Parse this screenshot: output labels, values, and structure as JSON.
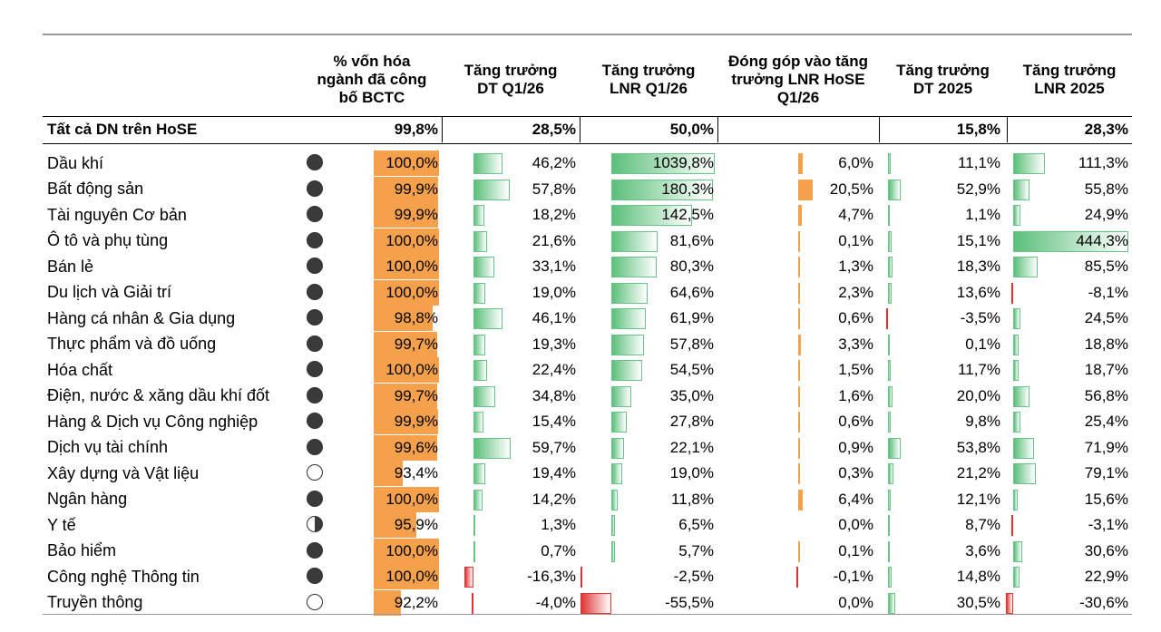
{
  "headers": {
    "cap": "% vốn hóa\nngành đã công\nbố BCTC",
    "rev_q1": "Tăng trưởng\nDT Q1/26",
    "np_q1": "Tăng trưởng\nLNR Q1/26",
    "contrib": "Đóng góp vào tăng\ntrưởng LNR HoSE\nQ1/26",
    "rev_2025": "Tăng trưởng\nDT 2025",
    "np_2025": "Tăng trưởng\nLNR 2025"
  },
  "summary": {
    "name": "Tất cả DN trên HoSE",
    "cap": "99,8%",
    "rev_q1": "28,5%",
    "np_q1": "50,0%",
    "contrib": "",
    "rev_2025": "15,8%",
    "np_2025": "28,3%"
  },
  "rows": [
    {
      "name": "Dầu khí",
      "status": "full",
      "cap": "100,0%",
      "rev_q1": "46,2%",
      "np_q1": "1039,8%",
      "contrib": "6,0%",
      "rev_2025": "11,1%",
      "np_2025": "111,3%",
      "rev_q1_v": 46.2,
      "np_q1_v": 1039.8,
      "contrib_v": 6.0,
      "rev_2025_v": 11.1,
      "np_2025_v": 111.3
    },
    {
      "name": "Bất động sản",
      "status": "full",
      "cap": "99,9%",
      "rev_q1": "57,8%",
      "np_q1": "180,3%",
      "contrib": "20,5%",
      "rev_2025": "52,9%",
      "np_2025": "55,8%",
      "rev_q1_v": 57.8,
      "np_q1_v": 180.3,
      "contrib_v": 20.5,
      "rev_2025_v": 52.9,
      "np_2025_v": 55.8
    },
    {
      "name": "Tài nguyên Cơ bản",
      "status": "full",
      "cap": "99,9%",
      "rev_q1": "18,2%",
      "np_q1": "142,5%",
      "contrib": "4,7%",
      "rev_2025": "1,1%",
      "np_2025": "24,9%",
      "rev_q1_v": 18.2,
      "np_q1_v": 142.5,
      "contrib_v": 4.7,
      "rev_2025_v": 1.1,
      "np_2025_v": 24.9
    },
    {
      "name": "Ô tô và phụ tùng",
      "status": "full",
      "cap": "100,0%",
      "rev_q1": "21,6%",
      "np_q1": "81,6%",
      "contrib": "0,1%",
      "rev_2025": "15,1%",
      "np_2025": "444,3%",
      "rev_q1_v": 21.6,
      "np_q1_v": 81.6,
      "contrib_v": 0.1,
      "rev_2025_v": 15.1,
      "np_2025_v": 444.3
    },
    {
      "name": "Bán lẻ",
      "status": "full",
      "cap": "100,0%",
      "rev_q1": "33,1%",
      "np_q1": "80,3%",
      "contrib": "1,3%",
      "rev_2025": "18,3%",
      "np_2025": "85,5%",
      "rev_q1_v": 33.1,
      "np_q1_v": 80.3,
      "contrib_v": 1.3,
      "rev_2025_v": 18.3,
      "np_2025_v": 85.5
    },
    {
      "name": "Du lịch và Giải trí",
      "status": "full",
      "cap": "100,0%",
      "rev_q1": "19,0%",
      "np_q1": "64,6%",
      "contrib": "2,3%",
      "rev_2025": "13,6%",
      "np_2025": "-8,1%",
      "rev_q1_v": 19.0,
      "np_q1_v": 64.6,
      "contrib_v": 2.3,
      "rev_2025_v": 13.6,
      "np_2025_v": -8.1
    },
    {
      "name": "Hàng cá nhân & Gia dụng",
      "status": "full",
      "cap": "98,8%",
      "rev_q1": "46,1%",
      "np_q1": "61,9%",
      "contrib": "0,6%",
      "rev_2025": "-3,5%",
      "np_2025": "24,5%",
      "rev_q1_v": 46.1,
      "np_q1_v": 61.9,
      "contrib_v": 0.6,
      "rev_2025_v": -3.5,
      "np_2025_v": 24.5
    },
    {
      "name": "Thực phẩm và đồ uống",
      "status": "full",
      "cap": "99,7%",
      "rev_q1": "19,3%",
      "np_q1": "57,8%",
      "contrib": "3,3%",
      "rev_2025": "0,1%",
      "np_2025": "18,8%",
      "rev_q1_v": 19.3,
      "np_q1_v": 57.8,
      "contrib_v": 3.3,
      "rev_2025_v": 0.1,
      "np_2025_v": 18.8
    },
    {
      "name": "Hóa chất",
      "status": "full",
      "cap": "100,0%",
      "rev_q1": "22,4%",
      "np_q1": "54,5%",
      "contrib": "1,5%",
      "rev_2025": "11,7%",
      "np_2025": "18,7%",
      "rev_q1_v": 22.4,
      "np_q1_v": 54.5,
      "contrib_v": 1.5,
      "rev_2025_v": 11.7,
      "np_2025_v": 18.7
    },
    {
      "name": "Điện, nước & xăng dầu khí đốt",
      "status": "full",
      "cap": "99,7%",
      "rev_q1": "34,8%",
      "np_q1": "35,0%",
      "contrib": "1,6%",
      "rev_2025": "20,0%",
      "np_2025": "56,8%",
      "rev_q1_v": 34.8,
      "np_q1_v": 35.0,
      "contrib_v": 1.6,
      "rev_2025_v": 20.0,
      "np_2025_v": 56.8
    },
    {
      "name": "Hàng & Dịch vụ Công nghiệp",
      "status": "full",
      "cap": "99,9%",
      "rev_q1": "15,4%",
      "np_q1": "27,8%",
      "contrib": "0,6%",
      "rev_2025": "9,8%",
      "np_2025": "25,4%",
      "rev_q1_v": 15.4,
      "np_q1_v": 27.8,
      "contrib_v": 0.6,
      "rev_2025_v": 9.8,
      "np_2025_v": 25.4
    },
    {
      "name": "Dịch vụ tài chính",
      "status": "full",
      "cap": "99,6%",
      "rev_q1": "59,7%",
      "np_q1": "22,1%",
      "contrib": "0,9%",
      "rev_2025": "53,8%",
      "np_2025": "71,9%",
      "rev_q1_v": 59.7,
      "np_q1_v": 22.1,
      "contrib_v": 0.9,
      "rev_2025_v": 53.8,
      "np_2025_v": 71.9
    },
    {
      "name": "Xây dựng và Vật liệu",
      "status": "empty",
      "cap": "93,4%",
      "rev_q1": "19,4%",
      "np_q1": "19,0%",
      "contrib": "0,3%",
      "rev_2025": "21,2%",
      "np_2025": "79,1%",
      "rev_q1_v": 19.4,
      "np_q1_v": 19.0,
      "contrib_v": 0.3,
      "rev_2025_v": 21.2,
      "np_2025_v": 79.1
    },
    {
      "name": "Ngân hàng",
      "status": "full",
      "cap": "100,0%",
      "rev_q1": "14,2%",
      "np_q1": "11,8%",
      "contrib": "6,4%",
      "rev_2025": "12,1%",
      "np_2025": "15,6%",
      "rev_q1_v": 14.2,
      "np_q1_v": 11.8,
      "contrib_v": 6.4,
      "rev_2025_v": 12.1,
      "np_2025_v": 15.6
    },
    {
      "name": "Y tế",
      "status": "half",
      "cap": "95,9%",
      "rev_q1": "1,3%",
      "np_q1": "6,5%",
      "contrib": "0,0%",
      "rev_2025": "8,7%",
      "np_2025": "-3,1%",
      "rev_q1_v": 1.3,
      "np_q1_v": 6.5,
      "contrib_v": 0.0,
      "rev_2025_v": 8.7,
      "np_2025_v": -3.1
    },
    {
      "name": "Bảo hiểm",
      "status": "full",
      "cap": "100,0%",
      "rev_q1": "0,7%",
      "np_q1": "5,7%",
      "contrib": "0,1%",
      "rev_2025": "3,6%",
      "np_2025": "30,6%",
      "rev_q1_v": 0.7,
      "np_q1_v": 5.7,
      "contrib_v": 0.1,
      "rev_2025_v": 3.6,
      "np_2025_v": 30.6
    },
    {
      "name": "Công nghệ Thông tin",
      "status": "full",
      "cap": "100,0%",
      "rev_q1": "-16,3%",
      "np_q1": "-2,5%",
      "contrib": "-0,1%",
      "rev_2025": "14,8%",
      "np_2025": "22,9%",
      "rev_q1_v": -16.3,
      "np_q1_v": -2.5,
      "contrib_v": -0.1,
      "rev_2025_v": 14.8,
      "np_2025_v": 22.9
    },
    {
      "name": "Truyền thông",
      "status": "empty",
      "cap": "92,2%",
      "rev_q1": "-4,0%",
      "np_q1": "-55,5%",
      "contrib": "0,0%",
      "rev_2025": "30,5%",
      "np_2025": "-30,6%",
      "rev_q1_v": -4.0,
      "np_q1_v": -55.5,
      "contrib_v": 0.0,
      "rev_2025_v": 30.5,
      "np_2025_v": -30.6
    }
  ],
  "colors": {
    "positive_bar": "#5bbf7a",
    "negative_bar": "#e03434",
    "cap_fill": "#f5a04b",
    "contrib_bar": "#f5a04b"
  }
}
